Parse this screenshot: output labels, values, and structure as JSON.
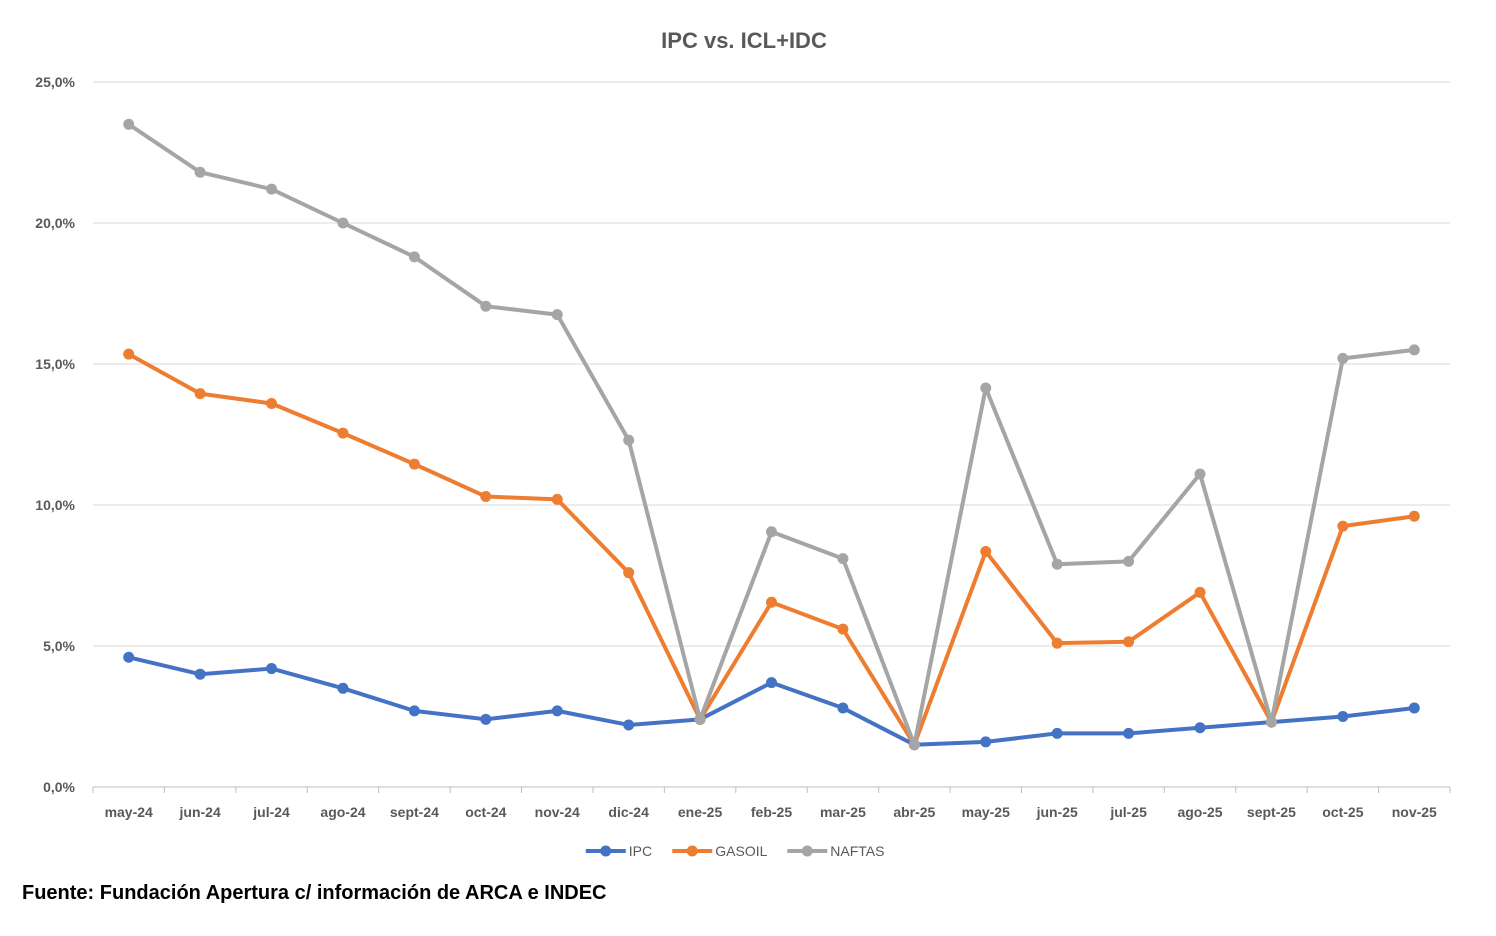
{
  "chart_data": {
    "type": "line",
    "title": "IPC vs. ICL+IDC",
    "categories": [
      "may-24",
      "jun-24",
      "jul-24",
      "ago-24",
      "sept-24",
      "oct-24",
      "nov-24",
      "dic-24",
      "ene-25",
      "feb-25",
      "mar-25",
      "abr-25",
      "may-25",
      "jun-25",
      "jul-25",
      "ago-25",
      "sept-25",
      "oct-25",
      "nov-25"
    ],
    "series": [
      {
        "name": "IPC",
        "color": "#4472c4",
        "values": [
          4.6,
          4.0,
          4.2,
          3.5,
          2.7,
          2.4,
          2.7,
          2.2,
          2.4,
          3.7,
          2.8,
          1.5,
          1.6,
          1.9,
          1.9,
          2.1,
          2.3,
          2.5,
          2.8
        ]
      },
      {
        "name": "GASOIL",
        "color": "#ed7d31",
        "values": [
          15.35,
          13.95,
          13.6,
          12.55,
          11.45,
          10.3,
          10.2,
          7.6,
          2.4,
          6.55,
          5.6,
          1.5,
          8.35,
          5.1,
          5.15,
          6.9,
          2.3,
          9.25,
          9.6
        ]
      },
      {
        "name": "NAFTAS",
        "color": "#a5a5a5",
        "values": [
          23.5,
          21.8,
          21.2,
          20.0,
          18.8,
          17.05,
          16.75,
          12.3,
          2.4,
          9.05,
          8.1,
          1.5,
          14.15,
          7.9,
          8.0,
          11.1,
          2.3,
          15.2,
          15.5
        ]
      }
    ],
    "yticks": [
      "0,0%",
      "5,0%",
      "10,0%",
      "15,0%",
      "20,0%",
      "25,0%"
    ],
    "ylim": [
      0,
      25
    ],
    "xlabel": "",
    "ylabel": "",
    "grid": true,
    "legend": "bottom-center"
  },
  "source": "Fuente: Fundación Apertura c/ información de ARCA e INDEC"
}
